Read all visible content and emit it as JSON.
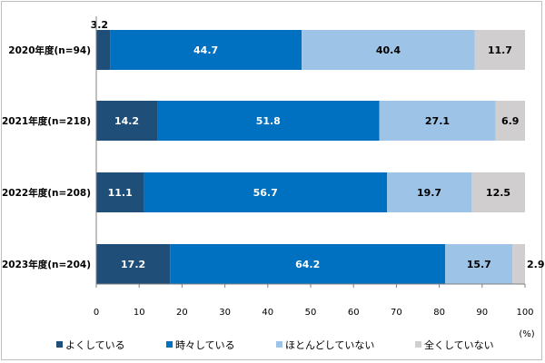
{
  "chart_data": {
    "type": "bar",
    "orientation": "horizontal",
    "stacked": true,
    "unit_label": "(%)",
    "xlim": [
      0,
      100
    ],
    "x_ticks": [
      0,
      10,
      20,
      30,
      40,
      50,
      60,
      70,
      80,
      90,
      100
    ],
    "categories": [
      "2020年度(n=94)",
      "2021年度(n=218)",
      "2022年度(n=208)",
      "2023年度(n=204)"
    ],
    "series": [
      {
        "name": "よくしている",
        "color": "#1f4e79",
        "label_color": "#ffffff",
        "values": [
          3.2,
          14.2,
          11.1,
          17.2
        ]
      },
      {
        "name": "時々している",
        "color": "#0070c0",
        "label_color": "#ffffff",
        "values": [
          44.7,
          51.8,
          56.7,
          64.2
        ]
      },
      {
        "name": "ほとんどしていない",
        "color": "#9dc3e6",
        "label_color": "#000000",
        "values": [
          40.4,
          27.1,
          19.7,
          15.7
        ]
      },
      {
        "name": "全くしていない",
        "color": "#d0cece",
        "label_color": "#000000",
        "values": [
          11.7,
          6.9,
          12.5,
          2.9
        ]
      }
    ],
    "grid": false,
    "legend_position": "bottom"
  }
}
